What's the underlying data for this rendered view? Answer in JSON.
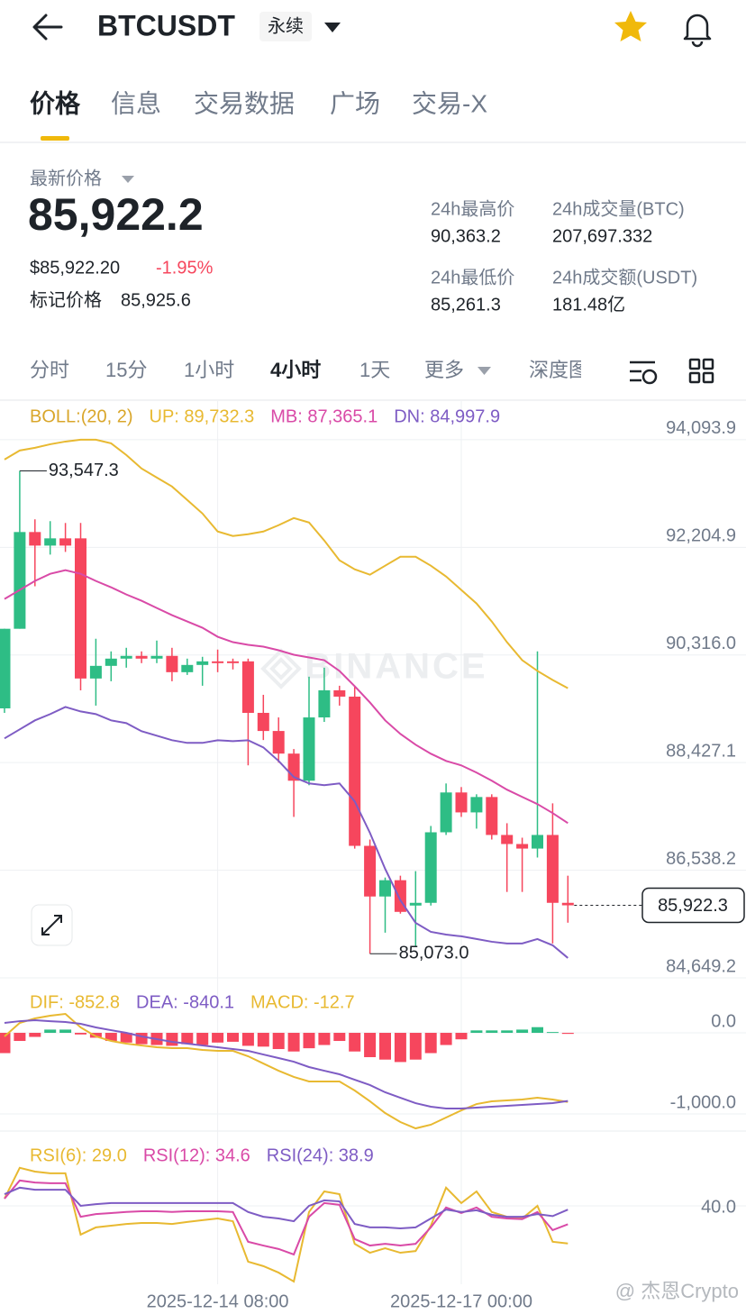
{
  "header": {
    "symbol": "BTCUSDT",
    "badge": "永续"
  },
  "tabs": {
    "items": [
      "价格",
      "信息",
      "交易数据",
      "广场",
      "交易-X"
    ],
    "active": 0
  },
  "price": {
    "label": "最新价格",
    "last": "85,922.2",
    "usd": "$85,922.20",
    "change": "-1.95%",
    "mark_label": "标记价格",
    "mark": "85,925.6",
    "stats": [
      {
        "label": "24h最高价",
        "value": "90,363.2"
      },
      {
        "label": "24h成交量(BTC)",
        "value": "207,697.332"
      },
      {
        "label": "24h最低价",
        "value": "85,261.3"
      },
      {
        "label": "24h成交额(USDT)",
        "value": "181.48亿"
      }
    ]
  },
  "timeframes": {
    "items": [
      "分时",
      "15分",
      "1小时",
      "4小时",
      "1天",
      "更多",
      "深度图"
    ],
    "active": 3
  },
  "watermark": "@ 杰恩Crypto",
  "chart_data": [
    {
      "type": "candlestick",
      "indicator": "BOLL:(20, 2)",
      "indicator_color": "#d9a62a",
      "watermark": "BINANCE",
      "grid": true,
      "up_color": "#2ebd85",
      "down_color": "#f6465d",
      "ylim": [
        84649.2,
        94773
      ],
      "yticks": [
        {
          "value": 94093.9,
          "label": "94,093.9"
        },
        {
          "value": 92204.9,
          "label": "92,204.9"
        },
        {
          "value": 90316,
          "label": "90,316.0"
        },
        {
          "value": 88427.1,
          "label": "88,427.1"
        },
        {
          "value": 86538.2,
          "label": "86,538.2"
        },
        {
          "value": 84649.2,
          "label": "84,649.2"
        }
      ],
      "open": [
        89379,
        90776,
        92474,
        92236,
        92363,
        92363,
        89903,
        90125,
        90252,
        90300,
        90252,
        90300,
        90014,
        90141,
        90204,
        90204,
        90204,
        89300,
        88982,
        88585,
        88109,
        89220,
        89696,
        89585,
        86966,
        86077,
        86363,
        85918,
        85966,
        87204,
        87903,
        87553,
        87823,
        87157,
        86998,
        86918,
        87157,
        85966
      ],
      "high": [
        90776,
        93547.3,
        92697,
        92665,
        92633,
        92633,
        90601,
        90379,
        90442,
        90379,
        90569,
        90442,
        90252,
        90284,
        90411,
        90252,
        90252,
        89617,
        89220,
        88665,
        89935,
        90093,
        89776,
        89776,
        87077,
        86410,
        86442,
        86522,
        87315,
        88061,
        87998,
        87871,
        87871,
        87363,
        87109,
        90379,
        87712,
        86442
      ],
      "low": [
        89300,
        90776,
        91522,
        92078,
        92125,
        89696,
        89427,
        89855,
        90093,
        90173,
        90173,
        89855,
        89966,
        89776,
        90014,
        90062,
        88379,
        88823,
        88426,
        87474,
        88030,
        89141,
        89427,
        86918,
        85073,
        85442,
        85776,
        85204,
        85918,
        87157,
        87474,
        87268,
        87077,
        86157,
        86157,
        86760,
        85252,
        85617
      ],
      "close": [
        90776,
        92474,
        92236,
        92363,
        92236,
        89903,
        90125,
        90252,
        90300,
        90252,
        90300,
        90014,
        90141,
        90204,
        90173,
        90173,
        89300,
        88982,
        88585,
        88109,
        89220,
        89696,
        89585,
        86966,
        86077,
        86363,
        85807,
        85966,
        87204,
        87903,
        87553,
        87823,
        87157,
        86998,
        86918,
        87157,
        85966,
        85922.3
      ],
      "high_label": {
        "value": 93547.3,
        "label": "93,547.3"
      },
      "low_label": {
        "value": 85073,
        "label": "85,073.0"
      },
      "last_price": {
        "value": 85922.3,
        "label": "85,922.3"
      },
      "series": [
        {
          "name": "UP: 89,732.3",
          "color": "#e8b931",
          "values": [
            93747,
            93905,
            93952,
            94015,
            94062,
            94094,
            94094,
            94031,
            93826,
            93589,
            93431,
            93273,
            93036,
            92799,
            92483,
            92404,
            92436,
            92483,
            92594,
            92720,
            92641,
            92326,
            91978,
            91820,
            91725,
            91883,
            92041,
            92041,
            91883,
            91694,
            91457,
            91220,
            90904,
            90541,
            90225,
            90036,
            89878,
            89732.3
          ]
        },
        {
          "name": "MB: 87,365.1",
          "color": "#d94aa7",
          "values": [
            91299,
            91457,
            91615,
            91741,
            91804,
            91741,
            91615,
            91504,
            91378,
            91268,
            91141,
            91015,
            90904,
            90794,
            90636,
            90541,
            90494,
            90462,
            90399,
            90320,
            90273,
            90225,
            90036,
            89768,
            89483,
            89168,
            88931,
            88741,
            88583,
            88457,
            88378,
            88252,
            88110,
            87952,
            87825,
            87699,
            87541,
            87365.1
          ]
        },
        {
          "name": "DN: 84,997.9",
          "color": "#7e5cc4",
          "values": [
            88852,
            89010,
            89168,
            89278,
            89404,
            89325,
            89278,
            89168,
            89120,
            88978,
            88899,
            88820,
            88773,
            88773,
            88820,
            88804,
            88820,
            88694,
            88457,
            88173,
            88062,
            88031,
            88062,
            87746,
            87194,
            86562,
            86010,
            85615,
            85457,
            85409,
            85378,
            85331,
            85283,
            85252,
            85252,
            85331,
            85220,
            84997.9
          ]
        }
      ]
    },
    {
      "type": "macd",
      "grid": true,
      "up_color": "#2ebd85",
      "down_color": "#f6465d",
      "ylim": [
        -1211,
        567
      ],
      "yticks": [
        {
          "value": 0,
          "label": "0.0"
        },
        {
          "value": -1000,
          "label": "-1,000.0"
        }
      ],
      "series": [
        {
          "name": "DIF: -852.8",
          "color": "#e8b931",
          "values": [
            -44,
            122,
            178,
            211,
            233,
            67,
            -44,
            -100,
            -133,
            -156,
            -178,
            -189,
            -189,
            -211,
            -222,
            -222,
            -289,
            -378,
            -467,
            -544,
            -600,
            -600,
            -600,
            -711,
            -844,
            -989,
            -1100,
            -1178,
            -1133,
            -1044,
            -956,
            -878,
            -844,
            -833,
            -822,
            -800,
            -822,
            -852.8
          ]
        },
        {
          "name": "DEA: -840.1",
          "color": "#7e5cc4",
          "values": [
            122,
            144,
            156,
            144,
            133,
            111,
            67,
            33,
            0,
            -44,
            -78,
            -111,
            -133,
            -156,
            -178,
            -200,
            -222,
            -267,
            -311,
            -356,
            -422,
            -467,
            -511,
            -578,
            -644,
            -733,
            -800,
            -867,
            -911,
            -933,
            -933,
            -922,
            -911,
            -900,
            -889,
            -878,
            -867,
            -840.1
          ]
        },
        {
          "name": "MACD: -12.7",
          "color": "#e8b931",
          "kind": "bar",
          "values": [
            -250,
            -100,
            -50,
            40,
            40,
            -20,
            -60,
            -100,
            -120,
            -140,
            -150,
            -160,
            -140,
            -150,
            -120,
            -110,
            -160,
            -170,
            -200,
            -230,
            -190,
            -150,
            -100,
            -230,
            -300,
            -330,
            -360,
            -330,
            -250,
            -150,
            -80,
            30,
            30,
            30,
            40,
            70,
            10,
            -12.7
          ]
        }
      ]
    },
    {
      "type": "rsi",
      "grid": true,
      "ylim": [
        17.1,
        59.2
      ],
      "yticks": [
        {
          "value": 40,
          "label": "40.0"
        }
      ],
      "categories": [
        null,
        null,
        null,
        null,
        null,
        null,
        null,
        null,
        null,
        null,
        null,
        null,
        null,
        null,
        "2025-12-14 08:00",
        null,
        null,
        null,
        null,
        null,
        null,
        null,
        null,
        null,
        null,
        null,
        null,
        null,
        null,
        null,
        "2025-12-17 00:00",
        null,
        null,
        null,
        null,
        null,
        null,
        null
      ],
      "series": [
        {
          "name": "RSI(6): 29.0",
          "color": "#e8b931",
          "values": [
            42.1,
            51.1,
            50.0,
            49.5,
            49.5,
            31.6,
            33.7,
            34.2,
            34.7,
            35.0,
            35.0,
            34.7,
            35.3,
            35.8,
            36.3,
            35.5,
            23.7,
            22.4,
            20.5,
            17.9,
            38.2,
            44.2,
            43.4,
            28.9,
            26.3,
            27.6,
            26.3,
            26.8,
            34.2,
            45.3,
            40.8,
            44.2,
            38.2,
            36.8,
            36.3,
            40.0,
            29.5,
            29.0
          ]
        },
        {
          "name": "RSI(12): 34.6",
          "color": "#d94aa7",
          "values": [
            42.1,
            47.4,
            46.8,
            46.6,
            46.6,
            36.8,
            37.6,
            37.9,
            38.2,
            38.4,
            38.4,
            38.2,
            38.4,
            38.4,
            38.4,
            38.2,
            29.5,
            28.4,
            27.4,
            25.8,
            36.8,
            40.8,
            40.3,
            30.3,
            28.4,
            28.9,
            28.4,
            28.9,
            33.7,
            39.5,
            37.9,
            39.5,
            36.8,
            36.3,
            36.1,
            38.2,
            32.9,
            34.6
          ]
        },
        {
          "name": "RSI(24): 38.9",
          "color": "#7e5cc4",
          "values": [
            43.4,
            45.3,
            44.7,
            44.7,
            44.7,
            40.0,
            40.5,
            40.8,
            40.8,
            40.8,
            40.8,
            40.8,
            40.8,
            40.8,
            40.8,
            40.8,
            38.2,
            36.8,
            36.3,
            35.5,
            40.0,
            41.6,
            41.3,
            34.7,
            33.7,
            33.7,
            33.4,
            33.7,
            36.3,
            38.9,
            38.2,
            38.7,
            37.4,
            36.8,
            36.8,
            37.6,
            37.0,
            38.9
          ]
        }
      ]
    }
  ]
}
